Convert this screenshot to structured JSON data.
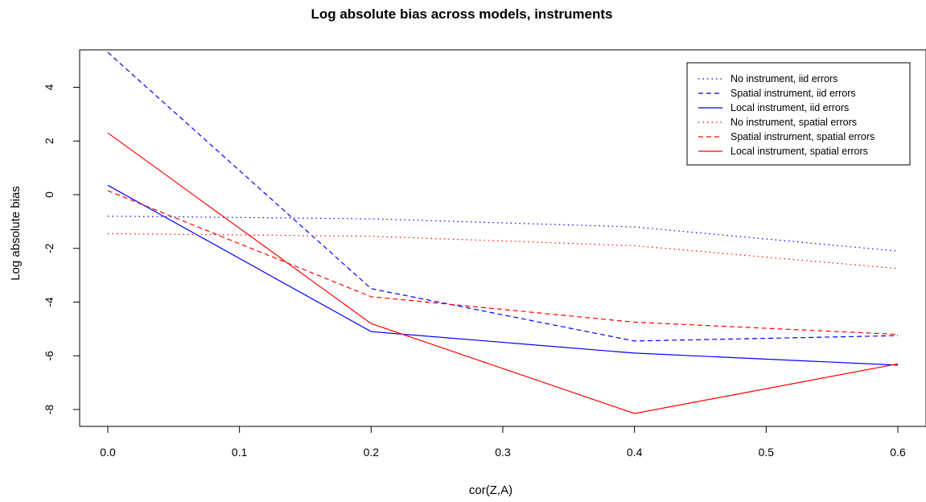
{
  "chart_data": {
    "type": "line",
    "title": "Log absolute bias across models, instruments",
    "xlabel": "cor(Z,A)",
    "ylabel": "Log absolute bias",
    "x": [
      0.0,
      0.2,
      0.4,
      0.6
    ],
    "xlim": [
      0.0,
      0.6
    ],
    "ylim": [
      -8.5,
      5.6
    ],
    "xticks": [
      "0.0",
      "0.1",
      "0.2",
      "0.3",
      "0.4",
      "0.5",
      "0.6"
    ],
    "yticks": [
      "-8",
      "-6",
      "-4",
      "-2",
      "0",
      "2",
      "4"
    ],
    "grid": false,
    "legend_position": "top-right",
    "series": [
      {
        "name": "No instrument, iid errors",
        "color": "#0000ff",
        "line_style": "dotted",
        "values": [
          -0.8,
          -0.9,
          -1.2,
          -2.1
        ]
      },
      {
        "name": "Spatial instrument, iid errors",
        "color": "#0000ff",
        "line_style": "dashed",
        "values": [
          5.3,
          -3.5,
          -5.45,
          -5.25
        ]
      },
      {
        "name": "Local instrument, iid errors",
        "color": "#0000ff",
        "line_style": "solid",
        "values": [
          0.35,
          -5.1,
          -5.9,
          -6.35
        ]
      },
      {
        "name": "No instrument, spatial errors",
        "color": "#ff0000",
        "line_style": "dotted",
        "values": [
          -1.45,
          -1.55,
          -1.9,
          -2.75
        ]
      },
      {
        "name": "Spatial instrument, spatial errors",
        "color": "#ff0000",
        "line_style": "dashed",
        "values": [
          0.15,
          -3.8,
          -4.75,
          -5.2
        ]
      },
      {
        "name": "Local instrument, spatial errors",
        "color": "#ff0000",
        "line_style": "solid",
        "values": [
          2.3,
          -4.8,
          -8.15,
          -6.3
        ]
      }
    ]
  }
}
